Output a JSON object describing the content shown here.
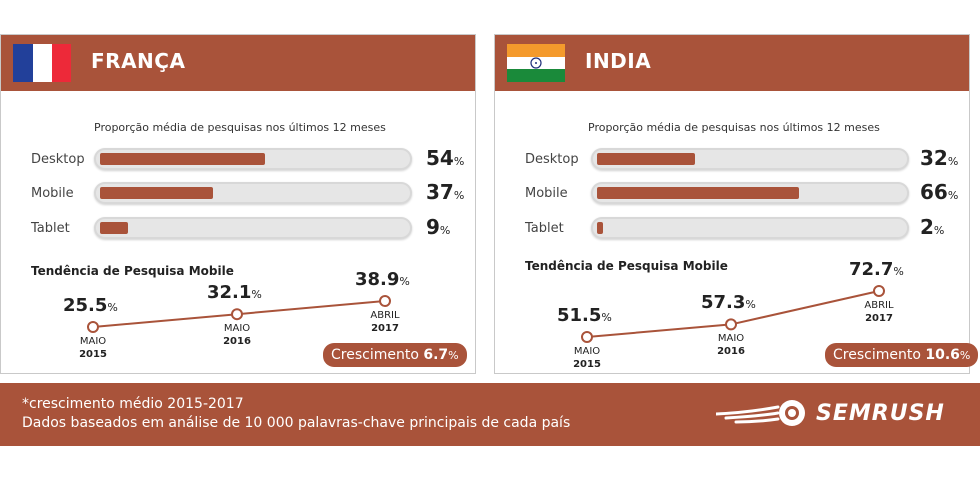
{
  "subtitle": "Proporção média de pesquisas nos últimos 12 meses",
  "trend_title": "Tendência de Pesquisa Mobile",
  "percent_sign": "%",
  "growth_label": "Crescimento",
  "colors": {
    "brand": "#a9533a",
    "track": "#e6e6e6",
    "text": "#333333"
  },
  "footer": {
    "note": "*crescimento médio 2015-2017",
    "source": "Dados baseados em análise de 10 000 palavras-chave principais de cada país",
    "logo_text": "SEMRUSH",
    "logo_icon": "flame-ball-icon"
  },
  "panels": [
    {
      "country": "FRANÇA",
      "flag_icon": "france-flag-icon",
      "devices": [
        {
          "label": "Desktop",
          "value": "54"
        },
        {
          "label": "Mobile",
          "value": "37"
        },
        {
          "label": "Tablet",
          "value": "9"
        }
      ],
      "growth": "6.7",
      "trend": [
        {
          "value": "25.5",
          "date_top": "MAIO",
          "date_bottom": "2015"
        },
        {
          "value": "32.1",
          "date_top": "MAIO",
          "date_bottom": "2016"
        },
        {
          "value": "38.9",
          "date_top": "ABRIL",
          "date_bottom": "2017"
        }
      ]
    },
    {
      "country": "INDIA",
      "flag_icon": "india-flag-icon",
      "devices": [
        {
          "label": "Desktop",
          "value": "32"
        },
        {
          "label": "Mobile",
          "value": "66"
        },
        {
          "label": "Tablet",
          "value": "2"
        }
      ],
      "growth": "10.6",
      "trend": [
        {
          "value": "51.5",
          "date_top": "MAIO",
          "date_bottom": "2015"
        },
        {
          "value": "57.3",
          "date_top": "MAIO",
          "date_bottom": "2016"
        },
        {
          "value": "72.7",
          "date_top": "ABRIL",
          "date_bottom": "2017"
        }
      ]
    }
  ],
  "chart_data": [
    {
      "type": "bar",
      "title": "Proporção média de pesquisas nos últimos 12 meses",
      "categories": [
        "Desktop",
        "Mobile",
        "Tablet"
      ],
      "values": [
        54,
        37,
        9
      ],
      "ylim": [
        0,
        100
      ]
    },
    {
      "type": "line",
      "title": "Tendência de Pesquisa Mobile",
      "x": [
        "MAIO 2015",
        "MAIO 2016",
        "ABRIL 2017"
      ],
      "values": [
        25.5,
        32.1,
        38.9
      ]
    },
    {
      "type": "bar",
      "title": "Proporção média de pesquisas nos últimos 12 meses",
      "categories": [
        "Desktop",
        "Mobile",
        "Tablet"
      ],
      "values": [
        32,
        66,
        2
      ],
      "ylim": [
        0,
        100
      ]
    },
    {
      "type": "line",
      "title": "Tendência de Pesquisa Mobile",
      "x": [
        "MAIO 2015",
        "MAIO 2016",
        "ABRIL 2017"
      ],
      "values": [
        51.5,
        57.3,
        72.7
      ]
    }
  ]
}
